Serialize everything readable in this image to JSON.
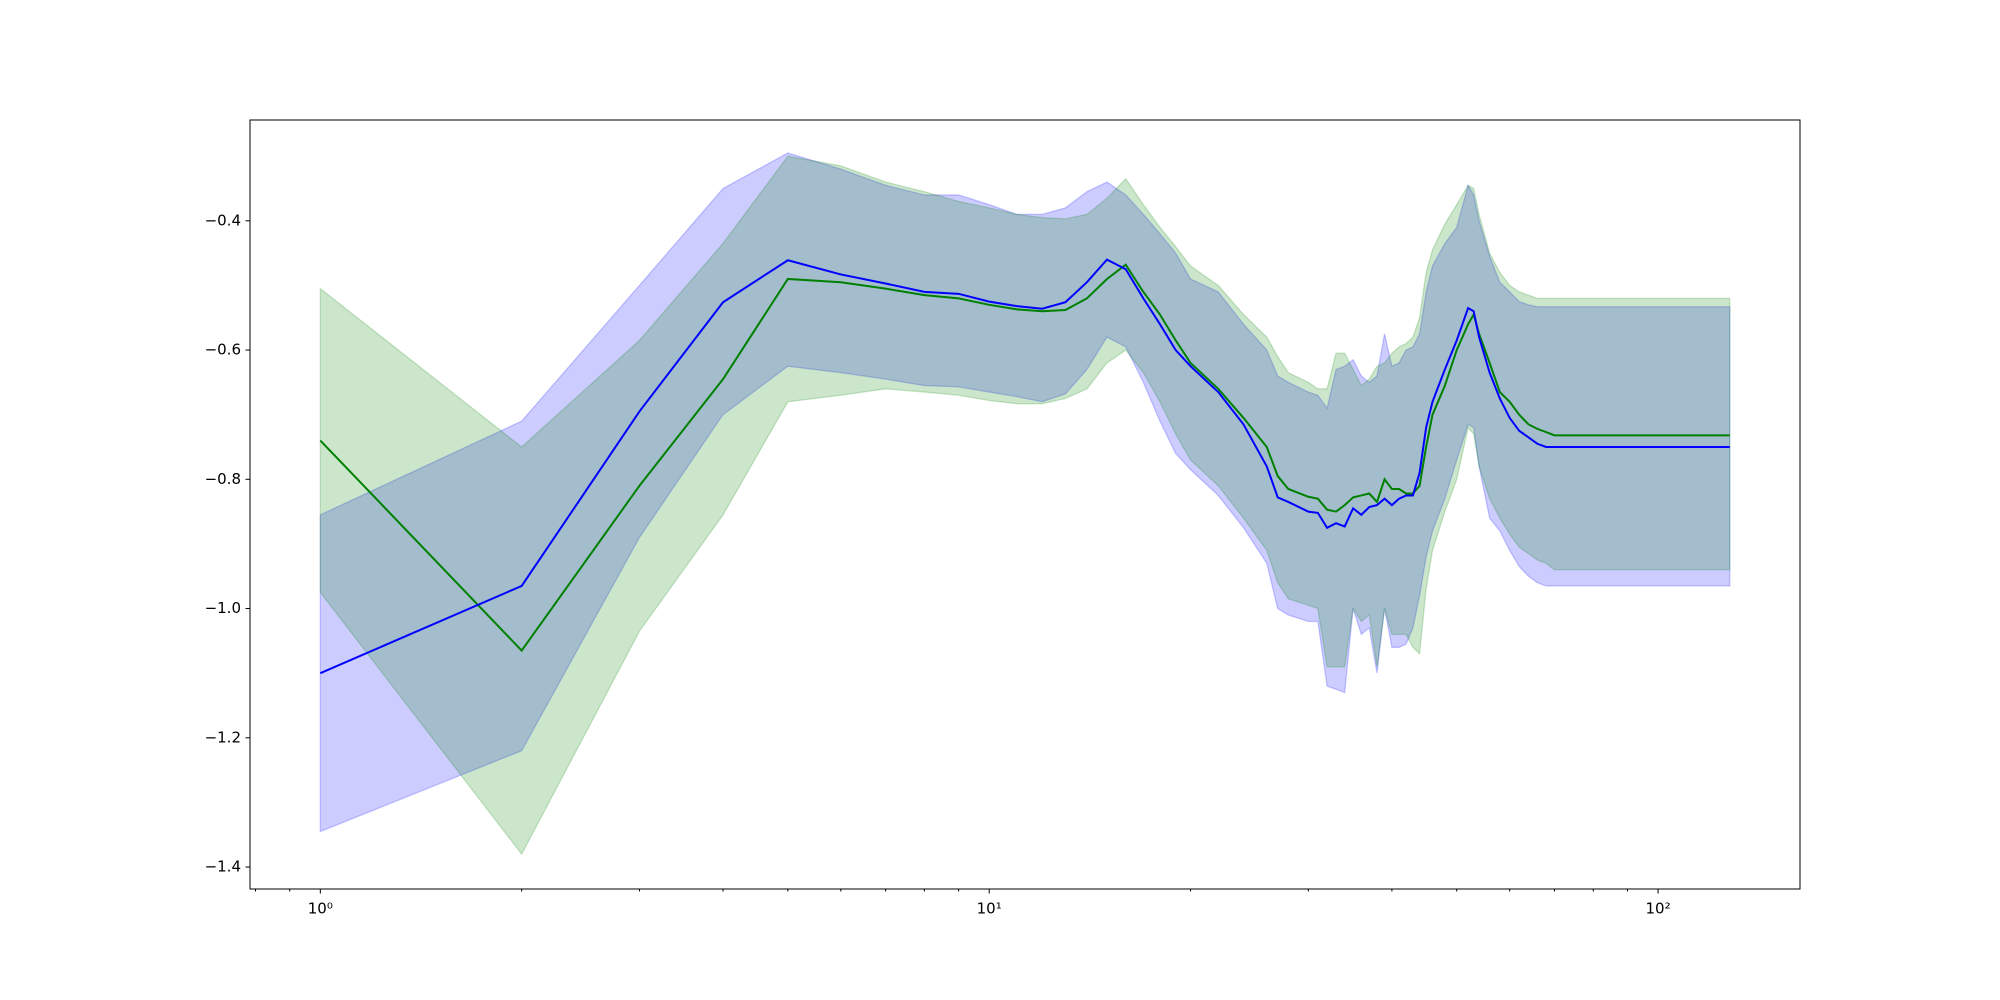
{
  "chart_data": {
    "type": "line_band",
    "xscale": "log",
    "xlim": [
      0.785,
      163
    ],
    "ylim": [
      -1.434,
      -0.244
    ],
    "xticks": [
      {
        "value": 1,
        "label": "10⁰"
      },
      {
        "value": 10,
        "label": "10¹"
      },
      {
        "value": 100,
        "label": "10²"
      }
    ],
    "xminorticks": [
      0.8,
      0.9,
      2,
      3,
      4,
      5,
      6,
      7,
      8,
      9,
      20,
      30,
      40,
      50,
      60,
      70,
      80,
      90
    ],
    "yticks": [
      {
        "value": -1.4,
        "label": "−1.4"
      },
      {
        "value": -1.2,
        "label": "−1.2"
      },
      {
        "value": -1.0,
        "label": "−1.0"
      },
      {
        "value": -0.8,
        "label": "−0.8"
      },
      {
        "value": -0.6,
        "label": "−0.6"
      },
      {
        "value": -0.4,
        "label": "−0.4"
      }
    ],
    "band_alpha": 0.2,
    "x": [
      1,
      2,
      3,
      4,
      5,
      6,
      7,
      8,
      9,
      10,
      11,
      12,
      13,
      14,
      15,
      16,
      17,
      18,
      19,
      20,
      22,
      24,
      26,
      27,
      28,
      30,
      31,
      32,
      33,
      34,
      35,
      36,
      37,
      38,
      39,
      40,
      41,
      42,
      43,
      44,
      45,
      46,
      48,
      50,
      52,
      53,
      54,
      56,
      58,
      60,
      62,
      64,
      66,
      68,
      70,
      72,
      128
    ],
    "series": [
      {
        "color": "#0000ff",
        "values": [
          -1.1,
          -0.965,
          -0.695,
          -0.526,
          -0.461,
          -0.483,
          -0.497,
          -0.51,
          -0.513,
          -0.525,
          -0.532,
          -0.536,
          -0.526,
          -0.495,
          -0.46,
          -0.475,
          -0.52,
          -0.56,
          -0.6,
          -0.625,
          -0.665,
          -0.715,
          -0.78,
          -0.828,
          -0.835,
          -0.85,
          -0.852,
          -0.875,
          -0.868,
          -0.873,
          -0.845,
          -0.855,
          -0.843,
          -0.84,
          -0.83,
          -0.84,
          -0.83,
          -0.825,
          -0.825,
          -0.79,
          -0.72,
          -0.68,
          -0.63,
          -0.585,
          -0.535,
          -0.54,
          -0.58,
          -0.635,
          -0.675,
          -0.705,
          -0.725,
          -0.735,
          -0.745,
          -0.75,
          -0.75,
          -0.75,
          -0.75
        ],
        "upper": [
          -0.855,
          -0.71,
          -0.5,
          -0.35,
          -0.295,
          -0.32,
          -0.345,
          -0.36,
          -0.36,
          -0.375,
          -0.39,
          -0.39,
          -0.38,
          -0.355,
          -0.34,
          -0.36,
          -0.39,
          -0.42,
          -0.45,
          -0.49,
          -0.51,
          -0.56,
          -0.6,
          -0.64,
          -0.65,
          -0.665,
          -0.67,
          -0.69,
          -0.63,
          -0.625,
          -0.615,
          -0.64,
          -0.65,
          -0.64,
          -0.575,
          -0.625,
          -0.62,
          -0.6,
          -0.595,
          -0.575,
          -0.51,
          -0.47,
          -0.435,
          -0.41,
          -0.345,
          -0.36,
          -0.4,
          -0.455,
          -0.495,
          -0.51,
          -0.525,
          -0.53,
          -0.533,
          -0.533,
          -0.533,
          -0.533,
          -0.533
        ],
        "lower": [
          -1.345,
          -1.22,
          -0.89,
          -0.7,
          -0.625,
          -0.635,
          -0.645,
          -0.655,
          -0.657,
          -0.665,
          -0.672,
          -0.68,
          -0.668,
          -0.63,
          -0.58,
          -0.595,
          -0.65,
          -0.71,
          -0.76,
          -0.785,
          -0.825,
          -0.875,
          -0.93,
          -1.0,
          -1.01,
          -1.02,
          -1.02,
          -1.12,
          -1.125,
          -1.13,
          -1.0,
          -1.04,
          -1.03,
          -1.1,
          -1.0,
          -1.06,
          -1.06,
          -1.055,
          -1.03,
          -0.98,
          -0.92,
          -0.88,
          -0.83,
          -0.77,
          -0.715,
          -0.72,
          -0.78,
          -0.86,
          -0.88,
          -0.91,
          -0.935,
          -0.95,
          -0.96,
          -0.965,
          -0.965,
          -0.965,
          -0.965
        ]
      },
      {
        "color": "#008000",
        "values": [
          -0.74,
          -1.065,
          -0.81,
          -0.645,
          -0.49,
          -0.495,
          -0.505,
          -0.515,
          -0.52,
          -0.53,
          -0.537,
          -0.54,
          -0.538,
          -0.52,
          -0.49,
          -0.468,
          -0.51,
          -0.545,
          -0.585,
          -0.62,
          -0.66,
          -0.705,
          -0.75,
          -0.795,
          -0.815,
          -0.827,
          -0.83,
          -0.847,
          -0.85,
          -0.84,
          -0.828,
          -0.825,
          -0.822,
          -0.835,
          -0.8,
          -0.815,
          -0.815,
          -0.822,
          -0.822,
          -0.81,
          -0.75,
          -0.7,
          -0.655,
          -0.6,
          -0.56,
          -0.545,
          -0.575,
          -0.62,
          -0.665,
          -0.68,
          -0.7,
          -0.715,
          -0.722,
          -0.727,
          -0.732,
          -0.732,
          -0.732
        ],
        "upper": [
          -0.505,
          -0.75,
          -0.585,
          -0.435,
          -0.3,
          -0.315,
          -0.34,
          -0.355,
          -0.37,
          -0.38,
          -0.39,
          -0.395,
          -0.397,
          -0.39,
          -0.365,
          -0.335,
          -0.375,
          -0.41,
          -0.44,
          -0.47,
          -0.5,
          -0.545,
          -0.58,
          -0.61,
          -0.635,
          -0.65,
          -0.66,
          -0.66,
          -0.605,
          -0.605,
          -0.63,
          -0.655,
          -0.645,
          -0.625,
          -0.62,
          -0.605,
          -0.595,
          -0.59,
          -0.58,
          -0.55,
          -0.48,
          -0.445,
          -0.405,
          -0.375,
          -0.345,
          -0.35,
          -0.39,
          -0.45,
          -0.48,
          -0.5,
          -0.51,
          -0.515,
          -0.52,
          -0.52,
          -0.52,
          -0.52,
          -0.52
        ],
        "lower": [
          -0.975,
          -1.38,
          -1.035,
          -0.855,
          -0.68,
          -0.67,
          -0.66,
          -0.665,
          -0.67,
          -0.678,
          -0.683,
          -0.683,
          -0.675,
          -0.66,
          -0.62,
          -0.6,
          -0.635,
          -0.68,
          -0.73,
          -0.77,
          -0.81,
          -0.86,
          -0.91,
          -0.96,
          -0.985,
          -0.995,
          -1.0,
          -1.09,
          -1.09,
          -1.09,
          -1.0,
          -1.02,
          -1.01,
          -1.09,
          -1.0,
          -1.04,
          -1.04,
          -1.04,
          -1.06,
          -1.07,
          -0.97,
          -0.91,
          -0.85,
          -0.8,
          -0.72,
          -0.73,
          -0.78,
          -0.83,
          -0.86,
          -0.885,
          -0.905,
          -0.915,
          -0.925,
          -0.93,
          -0.94,
          -0.94,
          -0.94
        ]
      }
    ]
  }
}
